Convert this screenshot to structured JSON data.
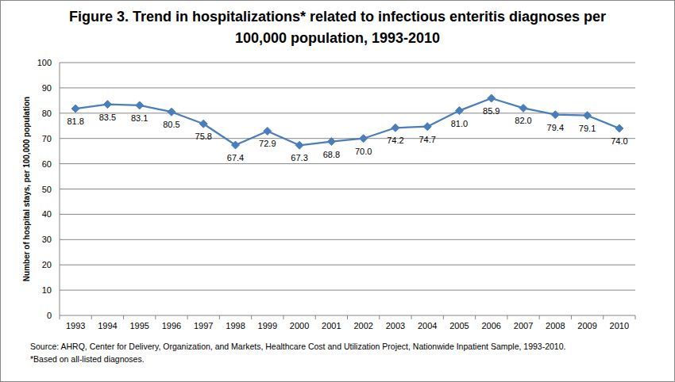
{
  "chart_data": {
    "type": "line",
    "title": "Figure 3. Trend in hospitalizations* related to infectious enteritis diagnoses per 100,000 population, 1993-2010",
    "y_label": "Number of hospital stays, per 100,000 population",
    "categories": [
      "1993",
      "1994",
      "1995",
      "1996",
      "1997",
      "1998",
      "1999",
      "2000",
      "2001",
      "2002",
      "2003",
      "2004",
      "2005",
      "2006",
      "2007",
      "2008",
      "2009",
      "2010"
    ],
    "values": [
      81.8,
      83.5,
      83.1,
      80.5,
      75.8,
      67.4,
      72.9,
      67.3,
      68.8,
      70.0,
      74.2,
      74.7,
      81.0,
      85.9,
      82.0,
      79.4,
      79.1,
      74.0
    ],
    "value_labels": [
      "81.8",
      "83.5",
      "83.1",
      "80.5",
      "75.8",
      "67.4",
      "72.9",
      "67.3",
      "68.8",
      "70.0",
      "74.2",
      "74.7",
      "81.0",
      "85.9",
      "82.0",
      "79.4",
      "79.1",
      "74.0"
    ],
    "color": "#4a7ebb",
    "marker": "diamond",
    "ylim": [
      0,
      100
    ],
    "yticks": [
      0,
      10,
      20,
      30,
      40,
      50,
      60,
      70,
      80,
      90,
      100
    ],
    "grid": true,
    "data_labels": true,
    "annotations": [
      "Source: AHRQ, Center for Delivery, Organization, and Markets, Healthcare Cost and Utilization Project, Nationwide Inpatient Sample, 1993-2010.",
      "*Based on all-listed diagnoses."
    ]
  }
}
